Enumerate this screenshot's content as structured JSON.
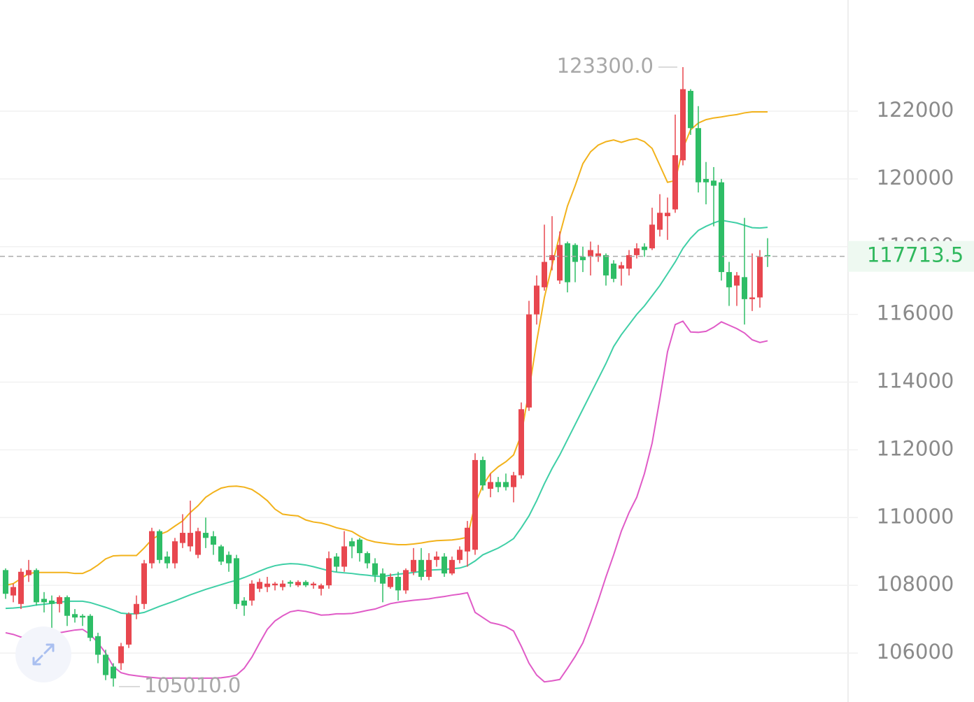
{
  "chart_data": {
    "type": "candlestick",
    "ylim": [
      104555,
      125283
    ],
    "yticks": [
      106000,
      108000,
      110000,
      112000,
      114000,
      116000,
      118000,
      120000,
      122000
    ],
    "grid": true,
    "up_color": "#e8474f",
    "down_color": "#2ebd66",
    "open": [
      108450,
      107700,
      107450,
      108300,
      108450,
      107600,
      107550,
      107450,
      107650,
      107150,
      107100,
      107100,
      106500,
      105950,
      105600,
      105700,
      106250,
      107150,
      107450,
      108650,
      109600,
      108850,
      108650,
      109250,
      109150,
      108900,
      109550,
      109450,
      109150,
      108900,
      108800,
      107550,
      107550,
      107900,
      107950,
      108000,
      107950,
      108100,
      108000,
      108100,
      108000,
      107900,
      108000,
      108850,
      108550,
      109300,
      109350,
      108950,
      108650,
      108350,
      107950,
      108250,
      107850,
      108400,
      108750,
      108250,
      108750,
      108850,
      108350,
      108750,
      109000,
      109050,
      111700,
      110850,
      111050,
      111050,
      110900,
      111250,
      113250,
      116000,
      116800,
      117600,
      117000,
      118100,
      118050,
      117700,
      117700,
      117700,
      117750,
      117500,
      117350,
      117350,
      117750,
      118000,
      117950,
      118500,
      118900,
      119100,
      120550,
      122600,
      121500,
      120000,
      119950,
      119900,
      117250,
      116850,
      117100,
      116450,
      116500,
      117750
    ],
    "high": [
      108500,
      108050,
      108500,
      108750,
      108500,
      107800,
      107700,
      107700,
      107700,
      107300,
      107150,
      107150,
      106600,
      106100,
      105700,
      106300,
      107200,
      107700,
      108750,
      109700,
      109650,
      109000,
      109400,
      110100,
      110500,
      109700,
      110000,
      109600,
      109200,
      109000,
      108900,
      107650,
      108150,
      108200,
      108250,
      108100,
      108150,
      108150,
      108150,
      108150,
      108100,
      108050,
      109000,
      108950,
      109600,
      109400,
      109400,
      109000,
      108800,
      108500,
      108350,
      108400,
      108500,
      109100,
      109100,
      108950,
      109000,
      108950,
      108850,
      109150,
      109900,
      111900,
      111800,
      111300,
      111200,
      111300,
      111350,
      113400,
      116400,
      117150,
      118650,
      118900,
      118450,
      118150,
      118100,
      118000,
      118150,
      118050,
      117800,
      117600,
      117550,
      117900,
      118100,
      118100,
      119150,
      119550,
      119450,
      121900,
      123300,
      122650,
      122150,
      120500,
      120350,
      120000,
      117550,
      117250,
      118850,
      117800,
      117900,
      118250
    ],
    "low": [
      107600,
      107500,
      107300,
      108100,
      107400,
      107200,
      106700,
      107200,
      106800,
      106900,
      106800,
      106350,
      105700,
      105200,
      105010,
      105500,
      106150,
      107000,
      107300,
      108500,
      108650,
      108500,
      108500,
      109100,
      109000,
      108800,
      109100,
      108900,
      108600,
      108400,
      107300,
      107100,
      107400,
      107800,
      107800,
      107850,
      107850,
      107950,
      107950,
      107950,
      107900,
      107700,
      107900,
      108400,
      108400,
      108800,
      108700,
      108500,
      108100,
      107500,
      107900,
      107550,
      107750,
      108300,
      108150,
      108150,
      108550,
      108250,
      108300,
      108650,
      108550,
      108900,
      110800,
      110600,
      110750,
      110800,
      110450,
      111150,
      113150,
      115700,
      116700,
      117300,
      116900,
      116650,
      116950,
      117250,
      117150,
      117550,
      116850,
      116950,
      116850,
      117150,
      117650,
      117700,
      117900,
      118300,
      118200,
      119000,
      120400,
      121300,
      119600,
      119250,
      118600,
      117000,
      116250,
      116250,
      115700,
      116100,
      116200,
      117400
    ],
    "close": [
      107750,
      107950,
      108400,
      108450,
      107500,
      107500,
      107450,
      107650,
      107100,
      107050,
      107050,
      106450,
      105950,
      105350,
      105250,
      106200,
      107150,
      107450,
      108650,
      109600,
      108750,
      108650,
      109300,
      109550,
      109550,
      109600,
      109400,
      109200,
      108700,
      108650,
      107450,
      107400,
      108050,
      108100,
      108050,
      108050,
      108050,
      108050,
      108100,
      108000,
      108050,
      108000,
      108800,
      108550,
      109150,
      109150,
      108950,
      108650,
      108300,
      108050,
      108250,
      107850,
      108450,
      108750,
      108250,
      108750,
      108850,
      108350,
      108750,
      109050,
      109700,
      111700,
      110950,
      111050,
      110900,
      110900,
      111250,
      113200,
      116000,
      116850,
      117550,
      117750,
      118050,
      116950,
      117550,
      117600,
      117900,
      117800,
      117150,
      117050,
      117450,
      117750,
      117950,
      117900,
      118650,
      119000,
      119000,
      120700,
      122650,
      121500,
      119900,
      119900,
      119800,
      117250,
      116800,
      117150,
      116450,
      116500,
      117700,
      117713.5
    ],
    "lines": [
      {
        "color": "#f2b21b",
        "values": [
          108000,
          108050,
          108200,
          108350,
          108380,
          108380,
          108380,
          108380,
          108380,
          108350,
          108350,
          108450,
          108600,
          108780,
          108870,
          108880,
          108880,
          108880,
          109100,
          109350,
          109500,
          109590,
          109750,
          109900,
          110150,
          110350,
          110600,
          110750,
          110870,
          110920,
          110930,
          110900,
          110830,
          110680,
          110500,
          110250,
          110100,
          110070,
          110050,
          109930,
          109870,
          109840,
          109780,
          109700,
          109650,
          109590,
          109450,
          109340,
          109280,
          109250,
          109220,
          109200,
          109200,
          109220,
          109250,
          109290,
          109320,
          109330,
          109340,
          109370,
          109420,
          110400,
          110950,
          111300,
          111500,
          111650,
          111850,
          112450,
          113750,
          115200,
          116500,
          117450,
          118350,
          119200,
          119800,
          120450,
          120800,
          121000,
          121100,
          121150,
          121080,
          121150,
          121190,
          121100,
          120900,
          120400,
          119900,
          119950,
          120900,
          121450,
          121650,
          121750,
          121800,
          121830,
          121870,
          121900,
          121950,
          121980,
          121980,
          121980
        ]
      },
      {
        "color": "#3fcfa6",
        "values": [
          107320,
          107330,
          107350,
          107380,
          107420,
          107440,
          107470,
          107500,
          107530,
          107530,
          107530,
          107490,
          107420,
          107350,
          107270,
          107180,
          107160,
          107160,
          107200,
          107290,
          107380,
          107460,
          107540,
          107630,
          107720,
          107800,
          107880,
          107950,
          108020,
          108090,
          108150,
          108230,
          108320,
          108420,
          108510,
          108580,
          108620,
          108640,
          108630,
          108600,
          108550,
          108490,
          108430,
          108390,
          108370,
          108350,
          108320,
          108300,
          108270,
          108260,
          108300,
          108330,
          108350,
          108380,
          108410,
          108450,
          108460,
          108470,
          108490,
          108510,
          108580,
          108720,
          108900,
          109000,
          109100,
          109230,
          109380,
          109700,
          110050,
          110500,
          111000,
          111450,
          111850,
          112300,
          112750,
          113200,
          113650,
          114100,
          114550,
          115050,
          115400,
          115700,
          116000,
          116250,
          116550,
          116850,
          117200,
          117550,
          117950,
          118250,
          118480,
          118600,
          118700,
          118780,
          118740,
          118700,
          118630,
          118560,
          118550,
          118570
        ]
      },
      {
        "color": "#e05bc7",
        "values": [
          106600,
          106550,
          106470,
          106500,
          106540,
          106560,
          106580,
          106600,
          106640,
          106680,
          106700,
          106550,
          106300,
          106000,
          105600,
          105420,
          105360,
          105330,
          105300,
          105280,
          105260,
          105260,
          105260,
          105260,
          105260,
          105260,
          105260,
          105260,
          105270,
          105300,
          105350,
          105550,
          105880,
          106300,
          106700,
          106950,
          107100,
          107220,
          107260,
          107230,
          107180,
          107120,
          107130,
          107160,
          107160,
          107170,
          107210,
          107260,
          107300,
          107380,
          107460,
          107500,
          107530,
          107560,
          107580,
          107600,
          107640,
          107670,
          107710,
          107740,
          107780,
          107200,
          107050,
          106900,
          106850,
          106780,
          106650,
          106200,
          105700,
          105350,
          105150,
          105180,
          105220,
          105550,
          105900,
          106300,
          106900,
          107550,
          108250,
          108900,
          109600,
          110150,
          110600,
          111300,
          112200,
          113500,
          114900,
          115700,
          115800,
          115480,
          115470,
          115500,
          115620,
          115780,
          115680,
          115580,
          115450,
          115250,
          115170,
          115220
        ]
      }
    ],
    "current_price": 117713.5,
    "high_annotation": {
      "value": 123300,
      "label": "123300.0"
    },
    "low_annotation": {
      "value": 105010,
      "label": "105010.0"
    }
  }
}
